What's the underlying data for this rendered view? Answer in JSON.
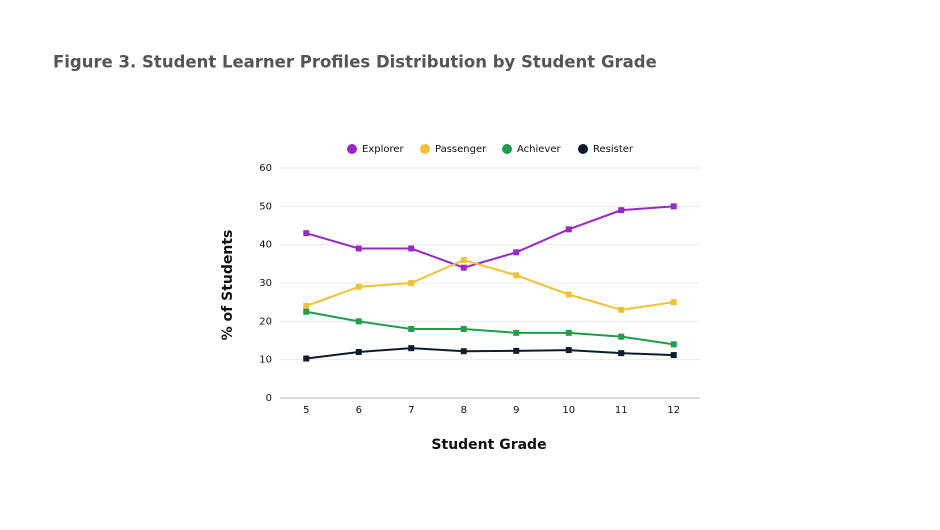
{
  "chart_data": {
    "type": "line",
    "title": "Figure 3. Student Learner Profiles Distribution by Student Grade",
    "x_label": "Student Grade",
    "y_label": "% of Students",
    "categories": [
      "5",
      "6",
      "7",
      "8",
      "9",
      "10",
      "11",
      "12"
    ],
    "series": [
      {
        "name": "Explorer",
        "color": "#9b27c8",
        "values": [
          43,
          39,
          39,
          34,
          38,
          44,
          49,
          50
        ]
      },
      {
        "name": "Passenger",
        "color": "#f0c232",
        "values": [
          24,
          29,
          30,
          36,
          32,
          27,
          23,
          25
        ]
      },
      {
        "name": "Achiever",
        "color": "#1e9e4b",
        "values": [
          22.5,
          20,
          18,
          18,
          17,
          17,
          16,
          14
        ]
      },
      {
        "name": "Resister",
        "color": "#0f1c2b",
        "values": [
          10.3,
          12,
          13,
          12.2,
          12.3,
          12.5,
          11.7,
          11.2
        ]
      }
    ],
    "ylim": [
      0,
      60
    ],
    "yticks": [
      0,
      10,
      20,
      30,
      40,
      50,
      60
    ],
    "grid": true,
    "legend": "top"
  }
}
